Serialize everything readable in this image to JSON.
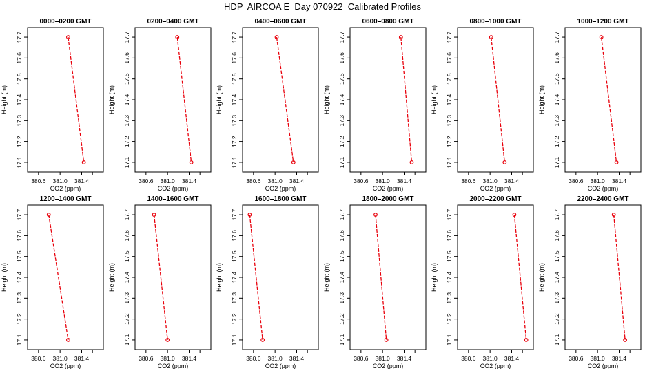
{
  "figure": {
    "title": "HDP  AIRCOA E  Day 070922  Calibrated Profiles"
  },
  "colors": {
    "series": "#e8000b",
    "axis": "#000000",
    "background": "#ffffff"
  },
  "chart_data": [
    {
      "type": "line",
      "title": "0000–0200 GMT",
      "xlabel": "CO2 (ppm)",
      "ylabel": "Height (m)",
      "xlim": [
        380.5,
        381.7
      ],
      "ylim": [
        17.08,
        17.72
      ],
      "xticks": [
        "380.6",
        "381.0",
        "381.4"
      ],
      "xtick_values": [
        380.6,
        381.0,
        381.4
      ],
      "yticks": [
        "17.1",
        "17.2",
        "17.3",
        "17.4",
        "17.5",
        "17.6",
        "17.7"
      ],
      "ytick_values": [
        17.1,
        17.2,
        17.3,
        17.4,
        17.5,
        17.6,
        17.7
      ],
      "points": [
        {
          "x": 381.15,
          "y": 17.7
        },
        {
          "x": 381.44,
          "y": 17.1
        }
      ]
    },
    {
      "type": "line",
      "title": "0200–0400 GMT",
      "xlabel": "CO2 (ppm)",
      "ylabel": "Height (m)",
      "xlim": [
        380.5,
        381.7
      ],
      "ylim": [
        17.08,
        17.72
      ],
      "xticks": [
        "380.6",
        "381.0",
        "381.4"
      ],
      "xtick_values": [
        380.6,
        381.0,
        381.4
      ],
      "yticks": [
        "17.1",
        "17.2",
        "17.3",
        "17.4",
        "17.5",
        "17.6",
        "17.7"
      ],
      "ytick_values": [
        17.1,
        17.2,
        17.3,
        17.4,
        17.5,
        17.6,
        17.7
      ],
      "points": [
        {
          "x": 381.18,
          "y": 17.7
        },
        {
          "x": 381.44,
          "y": 17.1
        }
      ]
    },
    {
      "type": "line",
      "title": "0400–0600 GMT",
      "xlabel": "CO2 (ppm)",
      "ylabel": "Height (m)",
      "xlim": [
        380.5,
        381.7
      ],
      "ylim": [
        17.08,
        17.72
      ],
      "xticks": [
        "380.6",
        "381.0",
        "381.4"
      ],
      "xtick_values": [
        380.6,
        381.0,
        381.4
      ],
      "yticks": [
        "17.1",
        "17.2",
        "17.3",
        "17.4",
        "17.5",
        "17.6",
        "17.7"
      ],
      "ytick_values": [
        17.1,
        17.2,
        17.3,
        17.4,
        17.5,
        17.6,
        17.7
      ],
      "points": [
        {
          "x": 381.03,
          "y": 17.7
        },
        {
          "x": 381.34,
          "y": 17.1
        }
      ]
    },
    {
      "type": "line",
      "title": "0600–0800 GMT",
      "xlabel": "CO2 (ppm)",
      "ylabel": "Height (m)",
      "xlim": [
        380.5,
        381.7
      ],
      "ylim": [
        17.08,
        17.72
      ],
      "xticks": [
        "380.6",
        "381.0",
        "381.4"
      ],
      "xtick_values": [
        380.6,
        381.0,
        381.4
      ],
      "yticks": [
        "17.1",
        "17.2",
        "17.3",
        "17.4",
        "17.5",
        "17.6",
        "17.7"
      ],
      "ytick_values": [
        17.1,
        17.2,
        17.3,
        17.4,
        17.5,
        17.6,
        17.7
      ],
      "points": [
        {
          "x": 381.34,
          "y": 17.7
        },
        {
          "x": 381.54,
          "y": 17.1
        }
      ]
    },
    {
      "type": "line",
      "title": "0800–1000 GMT",
      "xlabel": "CO2 (ppm)",
      "ylabel": "Height (m)",
      "xlim": [
        380.5,
        381.7
      ],
      "ylim": [
        17.08,
        17.72
      ],
      "xticks": [
        "380.6",
        "381.0",
        "381.4"
      ],
      "xtick_values": [
        380.6,
        381.0,
        381.4
      ],
      "yticks": [
        "17.1",
        "17.2",
        "17.3",
        "17.4",
        "17.5",
        "17.6",
        "17.7"
      ],
      "ytick_values": [
        17.1,
        17.2,
        17.3,
        17.4,
        17.5,
        17.6,
        17.7
      ],
      "points": [
        {
          "x": 381.02,
          "y": 17.7
        },
        {
          "x": 381.27,
          "y": 17.1
        }
      ]
    },
    {
      "type": "line",
      "title": "1000–1200 GMT",
      "xlabel": "CO2 (ppm)",
      "ylabel": "Height (m)",
      "xlim": [
        380.5,
        381.7
      ],
      "ylim": [
        17.08,
        17.72
      ],
      "xticks": [
        "380.6",
        "381.0",
        "381.4"
      ],
      "xtick_values": [
        380.6,
        381.0,
        381.4
      ],
      "yticks": [
        "17.1",
        "17.2",
        "17.3",
        "17.4",
        "17.5",
        "17.6",
        "17.7"
      ],
      "ytick_values": [
        17.1,
        17.2,
        17.3,
        17.4,
        17.5,
        17.6,
        17.7
      ],
      "points": [
        {
          "x": 381.07,
          "y": 17.7
        },
        {
          "x": 381.35,
          "y": 17.1
        }
      ]
    },
    {
      "type": "line",
      "title": "1200–1400 GMT",
      "xlabel": "CO2 (ppm)",
      "ylabel": "Height (m)",
      "xlim": [
        380.5,
        381.7
      ],
      "ylim": [
        17.08,
        17.72
      ],
      "xticks": [
        "380.6",
        "381.0",
        "381.4"
      ],
      "xtick_values": [
        380.6,
        381.0,
        381.4
      ],
      "yticks": [
        "17.1",
        "17.2",
        "17.3",
        "17.4",
        "17.5",
        "17.6",
        "17.7"
      ],
      "ytick_values": [
        17.1,
        17.2,
        17.3,
        17.4,
        17.5,
        17.6,
        17.7
      ],
      "points": [
        {
          "x": 380.79,
          "y": 17.7
        },
        {
          "x": 381.15,
          "y": 17.1
        }
      ]
    },
    {
      "type": "line",
      "title": "1400–1600 GMT",
      "xlabel": "CO2 (ppm)",
      "ylabel": "Height (m)",
      "xlim": [
        380.5,
        381.7
      ],
      "ylim": [
        17.08,
        17.72
      ],
      "xticks": [
        "380.6",
        "381.0",
        "381.4"
      ],
      "xtick_values": [
        380.6,
        381.0,
        381.4
      ],
      "yticks": [
        "17.1",
        "17.2",
        "17.3",
        "17.4",
        "17.5",
        "17.6",
        "17.7"
      ],
      "ytick_values": [
        17.1,
        17.2,
        17.3,
        17.4,
        17.5,
        17.6,
        17.7
      ],
      "points": [
        {
          "x": 380.75,
          "y": 17.7
        },
        {
          "x": 381.0,
          "y": 17.1
        }
      ]
    },
    {
      "type": "line",
      "title": "1600–1800 GMT",
      "xlabel": "CO2 (ppm)",
      "ylabel": "Height (m)",
      "xlim": [
        380.5,
        381.7
      ],
      "ylim": [
        17.08,
        17.72
      ],
      "xticks": [
        "380.6",
        "381.0",
        "381.4"
      ],
      "xtick_values": [
        380.6,
        381.0,
        381.4
      ],
      "yticks": [
        "17.1",
        "17.2",
        "17.3",
        "17.4",
        "17.5",
        "17.6",
        "17.7"
      ],
      "ytick_values": [
        17.1,
        17.2,
        17.3,
        17.4,
        17.5,
        17.6,
        17.7
      ],
      "points": [
        {
          "x": 380.53,
          "y": 17.7
        },
        {
          "x": 380.77,
          "y": 17.1
        }
      ]
    },
    {
      "type": "line",
      "title": "1800–2000 GMT",
      "xlabel": "CO2 (ppm)",
      "ylabel": "Height (m)",
      "xlim": [
        380.5,
        381.7
      ],
      "ylim": [
        17.08,
        17.72
      ],
      "xticks": [
        "380.6",
        "381.0",
        "381.4"
      ],
      "xtick_values": [
        380.6,
        381.0,
        381.4
      ],
      "yticks": [
        "17.1",
        "17.2",
        "17.3",
        "17.4",
        "17.5",
        "17.6",
        "17.7"
      ],
      "ytick_values": [
        17.1,
        17.2,
        17.3,
        17.4,
        17.5,
        17.6,
        17.7
      ],
      "points": [
        {
          "x": 380.87,
          "y": 17.7
        },
        {
          "x": 381.07,
          "y": 17.1
        }
      ]
    },
    {
      "type": "line",
      "title": "2000–2200 GMT",
      "xlabel": "CO2 (ppm)",
      "ylabel": "Height (m)",
      "xlim": [
        380.5,
        381.7
      ],
      "ylim": [
        17.08,
        17.72
      ],
      "xticks": [
        "380.6",
        "381.0",
        "381.4"
      ],
      "xtick_values": [
        380.6,
        381.0,
        381.4
      ],
      "yticks": [
        "17.1",
        "17.2",
        "17.3",
        "17.4",
        "17.5",
        "17.6",
        "17.7"
      ],
      "ytick_values": [
        17.1,
        17.2,
        17.3,
        17.4,
        17.5,
        17.6,
        17.7
      ],
      "points": [
        {
          "x": 381.45,
          "y": 17.7
        },
        {
          "x": 381.67,
          "y": 17.1
        }
      ]
    },
    {
      "type": "line",
      "title": "2200–2400 GMT",
      "xlabel": "CO2 (ppm)",
      "ylabel": "Height (m)",
      "xlim": [
        380.5,
        381.7
      ],
      "ylim": [
        17.08,
        17.72
      ],
      "xticks": [
        "380.6",
        "381.0",
        "381.4"
      ],
      "xtick_values": [
        380.6,
        381.0,
        381.4
      ],
      "yticks": [
        "17.1",
        "17.2",
        "17.3",
        "17.4",
        "17.5",
        "17.6",
        "17.7"
      ],
      "ytick_values": [
        17.1,
        17.2,
        17.3,
        17.4,
        17.5,
        17.6,
        17.7
      ],
      "points": [
        {
          "x": 381.3,
          "y": 17.7
        },
        {
          "x": 381.51,
          "y": 17.1
        }
      ]
    }
  ]
}
